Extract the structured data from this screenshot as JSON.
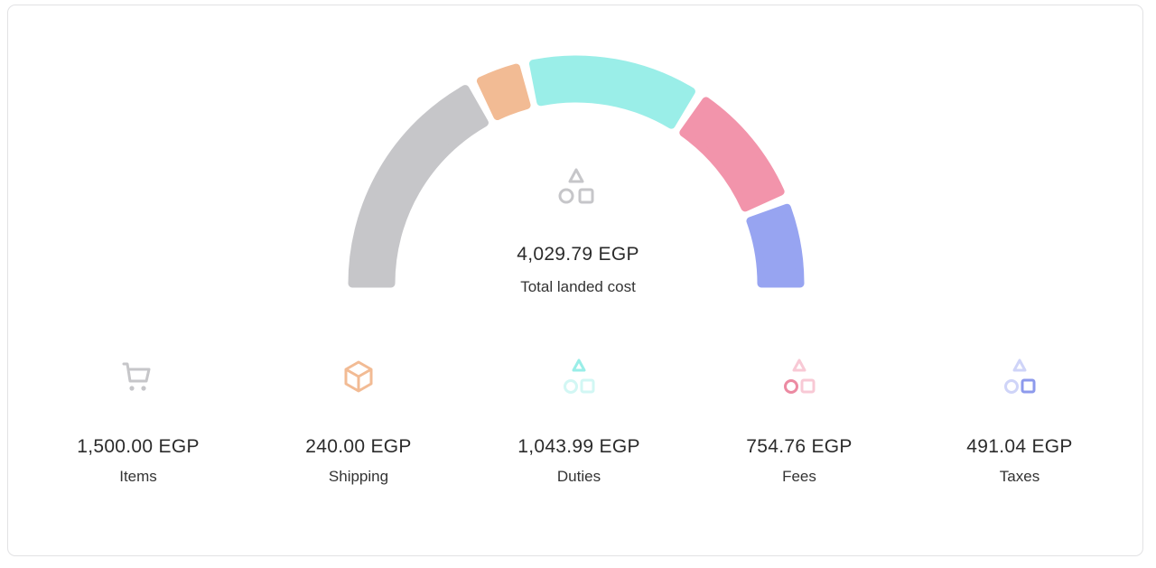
{
  "total": {
    "value": "4,029.79 EGP",
    "label": "Total landed cost",
    "icon": "shapes-icon",
    "color": "#c6c6c9"
  },
  "chart_data": {
    "type": "pie",
    "variant": "semicircle-gauge",
    "categories": [
      "Items",
      "Shipping",
      "Duties",
      "Fees",
      "Taxes"
    ],
    "values": [
      1500.0,
      240.0,
      1043.99,
      754.76,
      491.04
    ],
    "colors": [
      "#c6c6c9",
      "#f2bb94",
      "#9aeee8",
      "#f294ab",
      "#97a4f1"
    ]
  },
  "breakdown": [
    {
      "value": "1,500.00 EGP",
      "label": "Items",
      "icon": "cart-icon",
      "color": "#c6c6c9"
    },
    {
      "value": "240.00 EGP",
      "label": "Shipping",
      "icon": "box-icon",
      "color": "#f2bb94"
    },
    {
      "value": "1,043.99 EGP",
      "label": "Duties",
      "icon": "shapes-triangle-icon",
      "color": "#9aeee8"
    },
    {
      "value": "754.76 EGP",
      "label": "Fees",
      "icon": "shapes-circle-icon",
      "color": "#f294ab"
    },
    {
      "value": "491.04 EGP",
      "label": "Taxes",
      "icon": "shapes-square-icon",
      "color": "#97a4f1"
    }
  ]
}
